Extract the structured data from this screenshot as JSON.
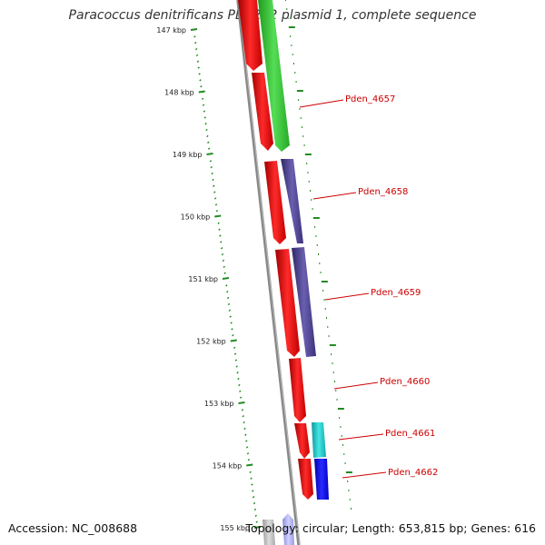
{
  "title": "Paracoccus denitrificans PD1222 plasmid 1, complete sequence",
  "footer": {
    "accession": "Accession: NC_008688",
    "summary": "Topology: circular; Length: 653,815 bp; Genes: 616"
  },
  "ruler": {
    "labels": [
      "147 kbp",
      "148 kbp",
      "149 kbp",
      "150 kbp",
      "151 kbp",
      "152 kbp",
      "153 kbp",
      "154 kbp",
      "155 kbp"
    ],
    "color": "#228b22"
  },
  "gene_labels": [
    "Pden_4657",
    "Pden_4658",
    "Pden_4659",
    "Pden_4660",
    "Pden_4661",
    "Pden_4662"
  ],
  "colors": {
    "red": "#ff1a1a",
    "green": "#33cc33",
    "purple": "#4a3f8c",
    "cyan": "#22cccc",
    "blue": "#0000ff",
    "backbone": "#888888",
    "label": "#cc0000"
  }
}
